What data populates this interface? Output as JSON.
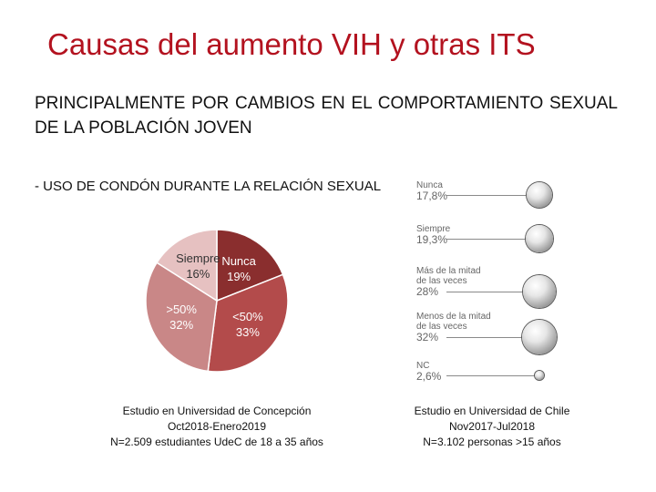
{
  "slide": {
    "title": "Causas del aumento VIH y otras ITS",
    "subtitle": "PRINCIPALMENTE POR CAMBIOS EN EL COMPORTAMIENTO SEXUAL DE LA POBLACIÓN JOVEN",
    "bullet": "-  USO DE CONDÓN DURANTE LA RELACIÓN SEXUAL"
  },
  "left_study": {
    "line1": "Estudio en Universidad de Concepción",
    "line2": "Oct2018-Enero2019",
    "line3": "N=2.509 estudiantes UdeC de 18 a 35 años"
  },
  "right_study": {
    "line1": "Estudio en Universidad de Chile",
    "line2": "Nov2017-Jul2018",
    "line3": "N=3.102 personas >15 años"
  },
  "chart_data": [
    {
      "type": "pie",
      "slices": [
        {
          "name": "Nunca",
          "label": "19%",
          "value": 19,
          "color": "#8a2e2e"
        },
        {
          "name": "<50%",
          "label": "33%",
          "value": 33,
          "color": "#b34b4b"
        },
        {
          "name": ">50%",
          "label": "32%",
          "value": 32,
          "color": "#c98787"
        },
        {
          "name": "Siempre",
          "label": "16%",
          "value": 16,
          "color": "#e6c1c1"
        }
      ]
    },
    {
      "type": "bubble",
      "items": [
        {
          "name_lines": [
            "Nunca"
          ],
          "label": "17,8%",
          "value": 17.8
        },
        {
          "name_lines": [
            "Siempre"
          ],
          "label": "19,3%",
          "value": 19.3
        },
        {
          "name_lines": [
            "Más de la mitad",
            "de las veces"
          ],
          "label": "28%",
          "value": 28
        },
        {
          "name_lines": [
            "Menos de la mitad",
            "de las veces"
          ],
          "label": "32%",
          "value": 32
        },
        {
          "name_lines": [
            "NC"
          ],
          "label": "2,6%",
          "value": 2.6
        }
      ]
    }
  ]
}
